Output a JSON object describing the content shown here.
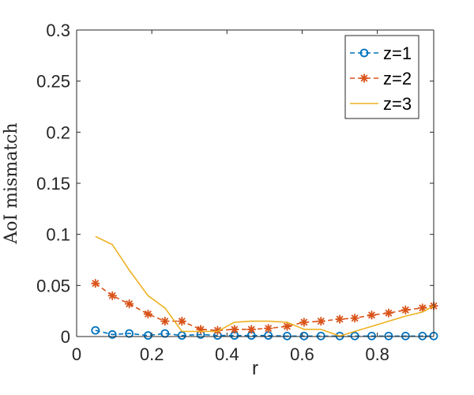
{
  "chart_data": {
    "type": "line",
    "title": "",
    "xlabel": "r",
    "ylabel": "AoI mismatch",
    "xlim": [
      0,
      0.95
    ],
    "ylim": [
      0,
      0.3
    ],
    "xticks": [
      0,
      0.2,
      0.4,
      0.6,
      0.8
    ],
    "xtick_labels": [
      "0",
      "0.2",
      "0.4",
      "0.6",
      "0.8"
    ],
    "yticks": [
      0,
      0.05,
      0.1,
      0.15,
      0.2,
      0.25,
      0.3
    ],
    "ytick_labels": [
      "0",
      "0.05",
      "0.1",
      "0.15",
      "0.2",
      "0.25",
      "0.3"
    ],
    "grid": false,
    "legend_position": "top-right",
    "x": [
      0.05,
      0.095,
      0.14,
      0.19,
      0.235,
      0.28,
      0.33,
      0.375,
      0.42,
      0.465,
      0.51,
      0.56,
      0.605,
      0.65,
      0.7,
      0.74,
      0.785,
      0.83,
      0.875,
      0.92,
      0.95
    ],
    "series": [
      {
        "name": "z=1",
        "color": "#0072BD",
        "line_style": "dashed",
        "marker": "circle",
        "values": [
          0.006,
          0.002,
          0.003,
          0.001,
          0.003,
          0.001,
          0.002,
          0.001,
          0.001,
          0.001,
          0.001,
          0.0005,
          0.0005,
          0.0005,
          0.0005,
          0.0005,
          0.0005,
          0.0005,
          0.0005,
          0.0005,
          0.0005
        ]
      },
      {
        "name": "z=2",
        "color": "#D95319",
        "line_style": "dashed",
        "marker": "asterisk",
        "values": [
          0.052,
          0.04,
          0.032,
          0.022,
          0.015,
          0.015,
          0.007,
          0.006,
          0.007,
          0.007,
          0.008,
          0.01,
          0.014,
          0.015,
          0.017,
          0.018,
          0.021,
          0.023,
          0.026,
          0.028,
          0.03
        ]
      },
      {
        "name": "z=3",
        "color": "#EDB120",
        "line_style": "solid",
        "marker": "none",
        "values": [
          0.098,
          0.09,
          0.065,
          0.04,
          0.028,
          0.005,
          0.005,
          0.005,
          0.014,
          0.015,
          0.015,
          0.014,
          0.007,
          0.007,
          0.0005,
          0.005,
          0.01,
          0.015,
          0.02,
          0.024,
          0.03
        ]
      }
    ]
  }
}
